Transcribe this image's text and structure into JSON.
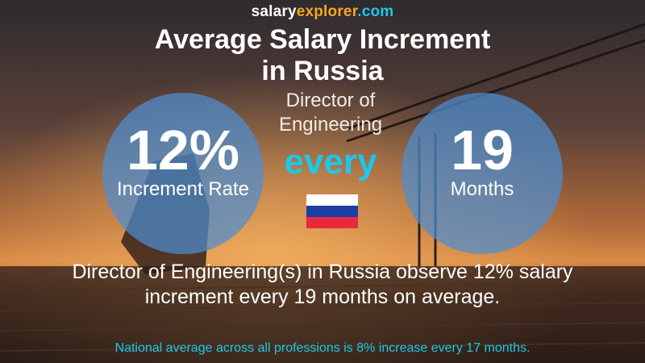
{
  "brand": {
    "salary": "salary",
    "explorer": "explorer",
    "com": ".com"
  },
  "title": {
    "line1": "Average Salary Increment",
    "line2": "in Russia"
  },
  "job": {
    "line1": "Director of",
    "line2": "Engineering"
  },
  "increment": {
    "value": "12%",
    "label": "Increment Rate"
  },
  "connector": "every",
  "period": {
    "value": "19",
    "label": "Months"
  },
  "flag": {
    "country": "Russia",
    "colors": [
      "#ffffff",
      "#1c3fa6",
      "#e8293c"
    ]
  },
  "summary": {
    "line1": "Director of Engineering(s) in Russia observe 12% salary",
    "line2": "increment every 19 months on average."
  },
  "footer": "National average across all professions is 8% increase every 17 months.",
  "colors": {
    "accent_cyan": "#1ec7e8",
    "accent_orange": "#f5a623",
    "circle_blue": "#4e8dd0"
  }
}
